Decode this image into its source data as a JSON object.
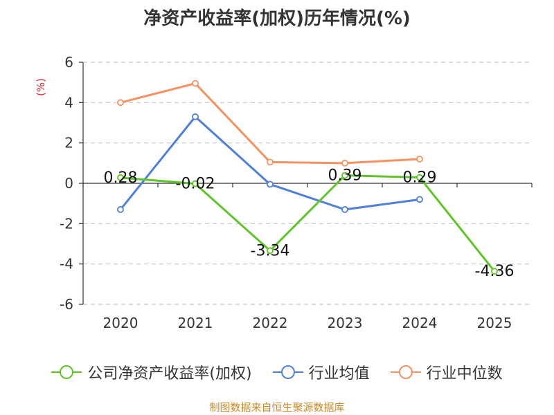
{
  "title": "净资产收益率(加权)历年情况(%)",
  "source": "制图数据来自恒生聚源数据库",
  "chart_data": {
    "type": "line",
    "categories": [
      "2020",
      "2021",
      "2022",
      "2023",
      "2024",
      "2025"
    ],
    "ylabel": "(%)",
    "ylim": [
      -6,
      6
    ],
    "yticks": [
      6,
      4,
      2,
      0,
      -2,
      -4,
      -6
    ],
    "grid": true,
    "legend_position": "bottom",
    "series": [
      {
        "name": "公司净资产收益率(加权)",
        "color": "#5ec429",
        "values": [
          0.28,
          -0.02,
          -3.34,
          0.39,
          0.29,
          -4.36
        ],
        "labels": [
          "0.28",
          "-0.02",
          "-3.34",
          "0.39",
          "0.29",
          "-4.36"
        ]
      },
      {
        "name": "行业均值",
        "color": "#4f7fd9",
        "values": [
          -1.3,
          3.3,
          -0.05,
          -1.3,
          -0.8,
          null
        ]
      },
      {
        "name": "行业中位数",
        "color": "#f59260",
        "values": [
          4.0,
          4.95,
          1.05,
          1.0,
          1.2,
          null
        ]
      }
    ]
  }
}
